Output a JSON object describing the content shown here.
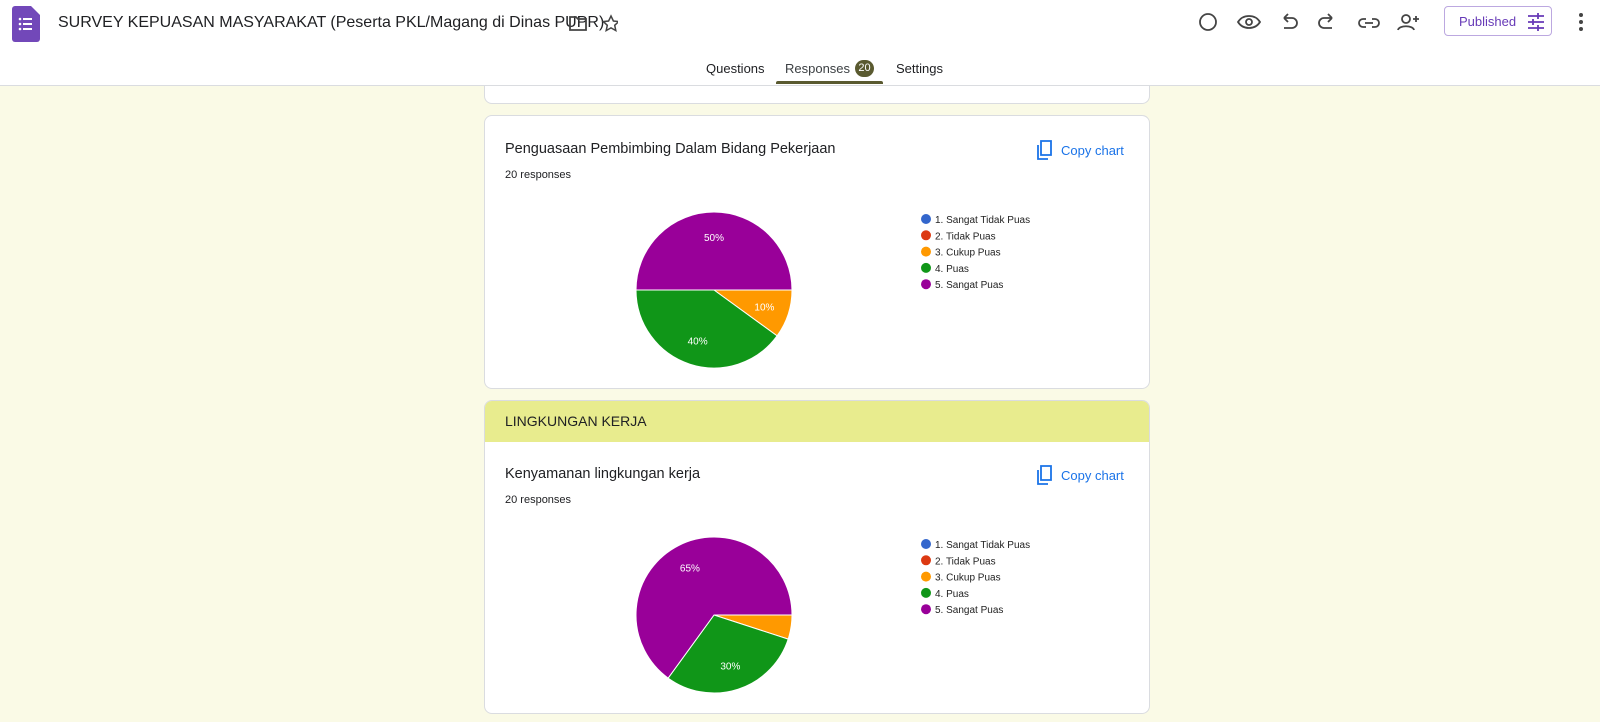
{
  "header": {
    "title": "SURVEY KEPUASAN MASYARAKAT (Peserta PKL/Magang di Dinas PUPR)",
    "publish_button": "Published"
  },
  "tabs": {
    "items": [
      "Questions",
      "Responses",
      "Settings"
    ],
    "response_count": 20
  },
  "section_title": "LINGKUNGAN KERJA",
  "chart_data": [
    {
      "type": "pie",
      "title": "Penguasaan Pembimbing Dalam Bidang Pekerjaan",
      "subtitle": "20 responses",
      "action": "Copy chart",
      "categories": [
        "1. Sangat Tidak Puas",
        "2. Tidak Puas",
        "3. Cukup Puas",
        "4. Puas",
        "5. Sangat Puas"
      ],
      "colors": [
        "#3366cc",
        "#dc3912",
        "#ff9900",
        "#109618",
        "#990099"
      ],
      "values": [
        0,
        0,
        10,
        40,
        50
      ],
      "value_labels": [
        null,
        null,
        "10%",
        "40%",
        "50%"
      ]
    },
    {
      "type": "pie",
      "title": "Kenyamanan lingkungan kerja",
      "subtitle": "20 responses",
      "action": "Copy chart",
      "categories": [
        "1. Sangat Tidak Puas",
        "2. Tidak Puas",
        "3. Cukup Puas",
        "4. Puas",
        "5. Sangat Puas"
      ],
      "colors": [
        "#3366cc",
        "#dc3912",
        "#ff9900",
        "#109618",
        "#990099"
      ],
      "values": [
        0,
        0,
        5,
        30,
        65
      ],
      "value_labels": [
        null,
        null,
        null,
        "30%",
        "65%"
      ]
    }
  ]
}
